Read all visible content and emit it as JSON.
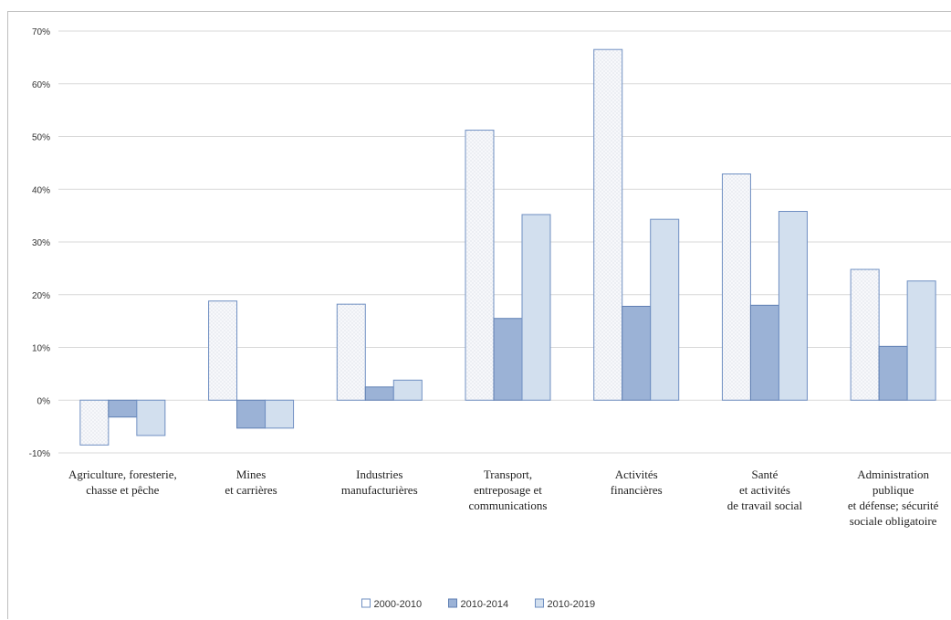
{
  "chart_data": {
    "type": "bar",
    "categories": [
      "Agriculture, foresterie,\nchasse et pêche",
      "Mines\net carrières",
      "Industries\nmanufacturières",
      "Transport,\nentreposage et\ncommunications",
      "Activités\nfinancières",
      "Santé\net activités\nde travail social",
      "Administration\npublique\net défense; sécurité\nsociale obligatoire"
    ],
    "series": [
      {
        "name": "2000-2010",
        "values": [
          -8.5,
          18.8,
          18.2,
          51.2,
          66.5,
          42.9,
          24.8
        ]
      },
      {
        "name": "2010-2014",
        "values": [
          -3.2,
          -5.3,
          2.5,
          15.5,
          17.8,
          18.0,
          10.2
        ]
      },
      {
        "name": "2010-2019",
        "values": [
          -6.7,
          -5.3,
          3.8,
          35.2,
          34.3,
          35.8,
          22.6
        ]
      }
    ],
    "ylim": [
      -10,
      70
    ],
    "ytick_labels": [
      "70%",
      "60%",
      "50%",
      "40%",
      "30%",
      "20%",
      "10%",
      "0%",
      "-10%"
    ],
    "grid": true,
    "legend_position": "bottom",
    "title": "",
    "xlabel": "",
    "ylabel": "",
    "colors": {
      "series_fill": [
        "#f4f6f9",
        "#9bb2d6",
        "#d2dfee"
      ],
      "series_stroke": [
        "#6f8fc2",
        "#5f7fb3",
        "#6f8fc2"
      ],
      "grid": "#d9d9d9"
    }
  }
}
